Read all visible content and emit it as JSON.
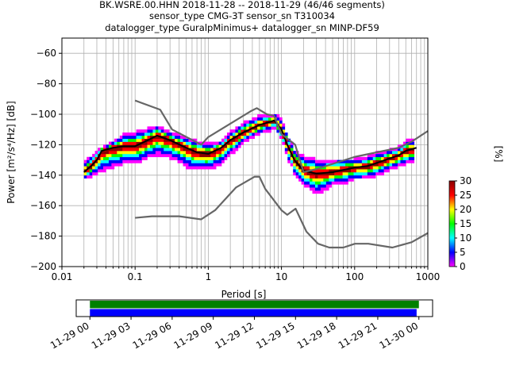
{
  "chart_data": {
    "type": "heatmap",
    "title_lines": [
      "BK.WSRE.00.HHN   2018-11-28 -- 2018-11-29  (46/46 segments)",
      "sensor_type CMG-3T sensor_sn T310034",
      "datalogger_type GuralpMinimus+ datalogger_sn MINP-DF59"
    ],
    "xlabel": "Period [s]",
    "ylabel": "Power [m²/s⁴/Hz] [dB]",
    "xscale": "log",
    "xlim": [
      0.01,
      1000
    ],
    "ylim": [
      -200,
      -50
    ],
    "x_ticks": [
      {
        "value": 0.01,
        "label": "0.01"
      },
      {
        "value": 0.1,
        "label": "0.1"
      },
      {
        "value": 1,
        "label": "1"
      },
      {
        "value": 10,
        "label": "10"
      },
      {
        "value": 100,
        "label": "100"
      },
      {
        "value": 1000,
        "label": "1000"
      }
    ],
    "y_ticks": [
      {
        "value": -60,
        "label": "−60"
      },
      {
        "value": -80,
        "label": "−80"
      },
      {
        "value": -100,
        "label": "−100"
      },
      {
        "value": -120,
        "label": "−120"
      },
      {
        "value": -140,
        "label": "−140"
      },
      {
        "value": -160,
        "label": "−160"
      },
      {
        "value": -180,
        "label": "−180"
      },
      {
        "value": -200,
        "label": "−200"
      }
    ],
    "grid": true,
    "colorbar": {
      "label": "[%]",
      "min": 0,
      "max": 30,
      "ticks": [
        "0",
        "5",
        "10",
        "15",
        "20",
        "25",
        "30"
      ],
      "colors": [
        "#ffffff",
        "#ff00ff",
        "#0000ff",
        "#00ffff",
        "#00ff00",
        "#ffff00",
        "#ff0000",
        "#8b0000"
      ]
    },
    "series": [
      {
        "role": "mode",
        "color": "#000000",
        "points": [
          [
            0.02,
            -138
          ],
          [
            0.025,
            -134
          ],
          [
            0.03,
            -130
          ],
          [
            0.035,
            -124
          ],
          [
            0.05,
            -122
          ],
          [
            0.07,
            -121
          ],
          [
            0.1,
            -121
          ],
          [
            0.15,
            -117
          ],
          [
            0.2,
            -114
          ],
          [
            0.3,
            -117
          ],
          [
            0.5,
            -122
          ],
          [
            0.7,
            -125
          ],
          [
            1,
            -126
          ],
          [
            1.5,
            -122
          ],
          [
            2,
            -117
          ],
          [
            3,
            -112
          ],
          [
            5,
            -107
          ],
          [
            7,
            -105
          ],
          [
            8,
            -104
          ],
          [
            10,
            -110
          ],
          [
            12,
            -120
          ],
          [
            15,
            -130
          ],
          [
            20,
            -137
          ],
          [
            30,
            -139
          ],
          [
            50,
            -138
          ],
          [
            80,
            -136
          ],
          [
            100,
            -135
          ],
          [
            150,
            -134
          ],
          [
            200,
            -132
          ],
          [
            300,
            -129
          ],
          [
            400,
            -127
          ],
          [
            500,
            -124
          ],
          [
            700,
            -122
          ]
        ]
      },
      {
        "role": "high-noise-model",
        "color": "#666666",
        "points": [
          [
            0.1,
            -91
          ],
          [
            0.22,
            -97
          ],
          [
            0.32,
            -110
          ],
          [
            0.8,
            -120
          ],
          [
            1,
            -115
          ],
          [
            3.8,
            -98
          ],
          [
            4.6,
            -96
          ],
          [
            6.3,
            -100
          ],
          [
            7.9,
            -101
          ],
          [
            10,
            -113
          ],
          [
            15.4,
            -120
          ],
          [
            20,
            -138
          ],
          [
            30,
            -136
          ],
          [
            100,
            -128
          ],
          [
            400,
            -122
          ],
          [
            600,
            -118
          ],
          [
            1000,
            -111
          ]
        ]
      },
      {
        "role": "low-noise-model",
        "color": "#666666",
        "points": [
          [
            0.1,
            -168
          ],
          [
            0.17,
            -167
          ],
          [
            0.4,
            -167
          ],
          [
            0.8,
            -169
          ],
          [
            1.24,
            -163
          ],
          [
            2.4,
            -148
          ],
          [
            4.3,
            -141
          ],
          [
            5,
            -141
          ],
          [
            6,
            -149
          ],
          [
            10,
            -163
          ],
          [
            12,
            -166
          ],
          [
            15.6,
            -162
          ],
          [
            21.9,
            -177
          ],
          [
            31.6,
            -185
          ],
          [
            45,
            -187.5
          ],
          [
            70,
            -187.5
          ],
          [
            101,
            -185
          ],
          [
            154,
            -185
          ],
          [
            328,
            -187.5
          ],
          [
            600,
            -184
          ],
          [
            1000,
            -178
          ]
        ]
      }
    ],
    "density_percentile_band": {
      "period": [
        0.02,
        0.025,
        0.03,
        0.05,
        0.07,
        0.1,
        0.15,
        0.2,
        0.3,
        0.5,
        0.7,
        1,
        1.5,
        2,
        3,
        5,
        7,
        8,
        10,
        12,
        15,
        20,
        30,
        50,
        80,
        100,
        150,
        200,
        300,
        400,
        500,
        650
      ],
      "upper_db": [
        -132,
        -128,
        -124,
        -118,
        -114,
        -112,
        -110,
        -108,
        -112,
        -116,
        -118,
        -120,
        -118,
        -112,
        -106,
        -101,
        -101,
        -100,
        -104,
        -114,
        -124,
        -128,
        -130,
        -130,
        -130,
        -130,
        -128,
        -126,
        -124,
        -122,
        -118,
        -117
      ],
      "lower_db": [
        -142,
        -140,
        -138,
        -134,
        -132,
        -132,
        -128,
        -126,
        -128,
        -134,
        -136,
        -136,
        -132,
        -126,
        -118,
        -112,
        -110,
        -108,
        -116,
        -128,
        -138,
        -146,
        -152,
        -146,
        -144,
        -142,
        -142,
        -140,
        -136,
        -134,
        -132,
        -132
      ]
    },
    "time_coverage": {
      "xlim": [
        "2018-11-28 23:00",
        "2018-11-30 01:00"
      ],
      "bars": [
        {
          "color": "#008000",
          "start": "2018-11-29 00:00",
          "end": "2018-11-30 00:00"
        },
        {
          "color": "#0000ff",
          "start": "2018-11-29 00:00",
          "end": "2018-11-29 23:50"
        }
      ],
      "tick_labels": [
        "11-29 00",
        "11-29 03",
        "11-29 06",
        "11-29 09",
        "11-29 12",
        "11-29 15",
        "11-29 18",
        "11-29 21",
        "11-30 00"
      ]
    }
  }
}
